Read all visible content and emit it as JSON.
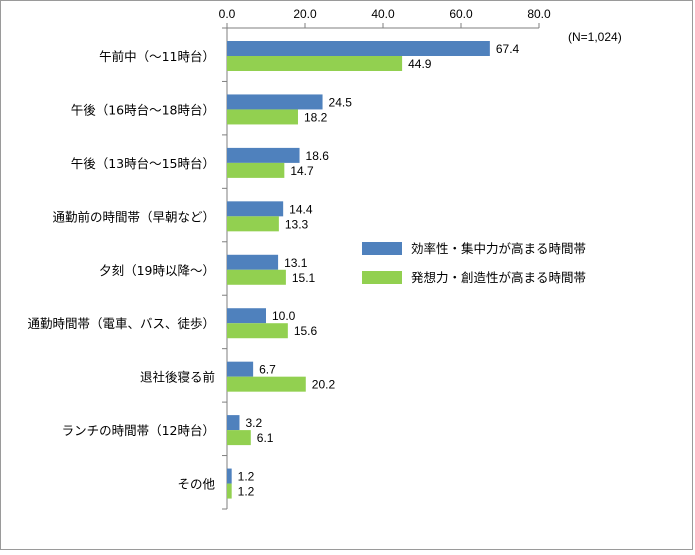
{
  "chart_data": {
    "type": "bar",
    "orientation": "horizontal",
    "sample_note": "(N=1,024)",
    "categories": [
      "午前中（～11時台）",
      "午後（16時台～18時台）",
      "午後（13時台～15時台）",
      "通勤前の時間帯（早朝など）",
      "夕刻（19時以降～）",
      "通勤時間帯（電車、バス、徒歩）",
      "退社後寝る前",
      "ランチの時間帯（12時台）",
      "その他"
    ],
    "series": [
      {
        "name": "効率性・集中力が高まる時間帯",
        "color": "#4f81bd",
        "values": [
          67.4,
          24.5,
          18.6,
          14.4,
          13.1,
          10.0,
          6.7,
          3.2,
          1.2
        ],
        "labels": [
          "67.4",
          "24.5",
          "18.6",
          "14.4",
          "13.1",
          "10.0",
          "6.7",
          "3.2",
          "1.2"
        ]
      },
      {
        "name": "発想力・創造性が高まる時間帯",
        "color": "#92d050",
        "values": [
          44.9,
          18.2,
          14.7,
          13.3,
          15.1,
          15.6,
          20.2,
          6.1,
          1.2
        ],
        "labels": [
          "44.9",
          "18.2",
          "14.7",
          "13.3",
          "15.1",
          "15.6",
          "20.2",
          "6.1",
          "1.2"
        ]
      }
    ],
    "xlim": [
      0,
      80
    ],
    "xticks": [
      0,
      20,
      40,
      60,
      80
    ],
    "xtick_labels": [
      "0.0",
      "20.0",
      "40.0",
      "60.0",
      "80.0"
    ],
    "axis_position": "top",
    "grid": false,
    "legend_position": "right"
  }
}
